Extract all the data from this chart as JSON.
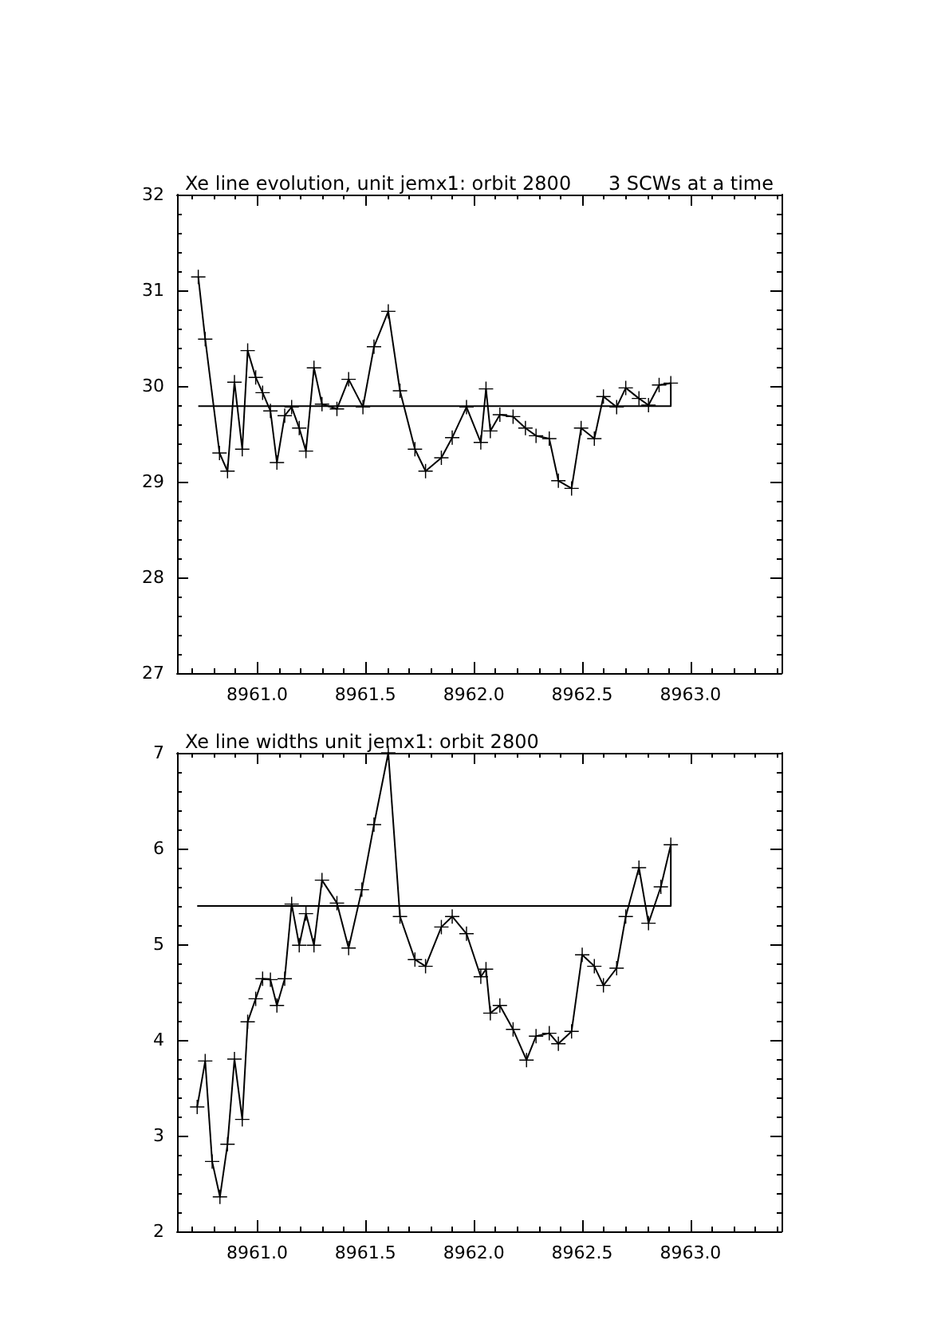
{
  "chart_data": [
    {
      "type": "line",
      "title": "Xe line evolution, unit jemx1: orbit 2800",
      "annotations": [
        "3 SCWs at a time"
      ],
      "marker": "cross",
      "xlim": [
        8960.63,
        8963.42
      ],
      "xticks": [
        {
          "value": 8961,
          "label": "8961.0"
        },
        {
          "value": 8961.5,
          "label": "8961.5"
        },
        {
          "value": 8962,
          "label": "8962.0"
        },
        {
          "value": 8962.5,
          "label": "8962.5"
        },
        {
          "value": 8963,
          "label": "8963.0"
        }
      ],
      "ylim": [
        27,
        32
      ],
      "yticks": [
        27,
        28,
        29,
        30,
        31,
        32
      ],
      "series": [
        {
          "color": "#000000",
          "x": [
            8960.728,
            8960.76,
            8960.826,
            8960.863,
            8960.895,
            8960.931,
            8960.956,
            8960.993,
            8961.025,
            8961.061,
            8961.091,
            8961.127,
            8961.159,
            8961.194,
            8961.225,
            8961.262,
            8961.299,
            8961.368,
            8961.422,
            8961.488,
            8961.539,
            8961.605,
            8961.659,
            8961.728,
            8961.777,
            8961.85,
            8961.9,
            8961.966,
            8962.032,
            8962.056,
            8962.076,
            8962.12,
            8962.181,
            8962.238,
            8962.287,
            8962.348,
            8962.39,
            8962.451,
            8962.495,
            8962.556,
            8962.598,
            8962.659,
            8962.701,
            8962.762,
            8962.806,
            8962.855,
            8962.909
          ],
          "values": [
            31.14,
            30.49,
            29.3,
            29.11,
            30.04,
            29.34,
            30.37,
            30.09,
            29.93,
            29.74,
            29.2,
            29.69,
            29.78,
            29.56,
            29.32,
            30.19,
            29.81,
            29.76,
            30.07,
            29.78,
            30.41,
            30.78,
            29.95,
            29.34,
            29.11,
            29.25,
            29.46,
            29.78,
            29.41,
            29.97,
            29.53,
            29.7,
            29.68,
            29.56,
            29.48,
            29.45,
            29.01,
            28.93,
            29.56,
            29.45,
            29.89,
            29.78,
            29.98,
            29.87,
            29.8,
            30.01,
            30.03
          ]
        },
        {
          "color": "#000000",
          "marker": "none",
          "x": [
            8960.728,
            8962.909,
            8962.909
          ],
          "values": [
            29.79,
            29.79,
            30.03
          ]
        }
      ]
    },
    {
      "type": "line",
      "title": "Xe line widths unit jemx1: orbit 2800",
      "marker": "cross",
      "xlim": [
        8960.63,
        8963.42
      ],
      "xticks": [
        {
          "value": 8961,
          "label": "8961.0"
        },
        {
          "value": 8961.5,
          "label": "8961.5"
        },
        {
          "value": 8962,
          "label": "8962.0"
        },
        {
          "value": 8962.5,
          "label": "8962.5"
        },
        {
          "value": 8963,
          "label": "8963.0"
        }
      ],
      "ylim": [
        2,
        7
      ],
      "yticks": [
        2,
        3,
        4,
        5,
        6,
        7
      ],
      "series": [
        {
          "color": "#000000",
          "x": [
            8960.723,
            8960.76,
            8960.792,
            8960.828,
            8960.863,
            8960.895,
            8960.931,
            8960.956,
            8960.993,
            8961.025,
            8961.061,
            8961.091,
            8961.127,
            8961.159,
            8961.194,
            8961.225,
            8961.262,
            8961.299,
            8961.368,
            8961.422,
            8961.483,
            8961.539,
            8961.605,
            8961.659,
            8961.728,
            8961.777,
            8961.85,
            8961.9,
            8961.966,
            8962.032,
            8962.056,
            8962.076,
            8962.12,
            8962.181,
            8962.243,
            8962.287,
            8962.348,
            8962.39,
            8962.451,
            8962.5,
            8962.556,
            8962.598,
            8962.659,
            8962.701,
            8962.762,
            8962.806,
            8962.863,
            8962.909
          ],
          "values": [
            3.3,
            3.78,
            2.73,
            2.36,
            2.91,
            3.8,
            3.17,
            4.19,
            4.43,
            4.64,
            4.63,
            4.36,
            4.64,
            5.42,
            4.99,
            5.32,
            4.99,
            5.67,
            5.43,
            4.96,
            5.57,
            6.25,
            7.0,
            5.29,
            4.84,
            4.77,
            5.18,
            5.29,
            5.11,
            4.66,
            4.74,
            4.28,
            4.36,
            4.11,
            3.79,
            4.04,
            4.07,
            3.96,
            4.09,
            4.89,
            4.77,
            4.57,
            4.75,
            5.29,
            5.8,
            5.22,
            5.6,
            6.04
          ]
        },
        {
          "color": "#000000",
          "marker": "none",
          "x": [
            8960.723,
            8962.909,
            8962.909
          ],
          "values": [
            5.4,
            5.4,
            6.04
          ]
        }
      ]
    }
  ]
}
